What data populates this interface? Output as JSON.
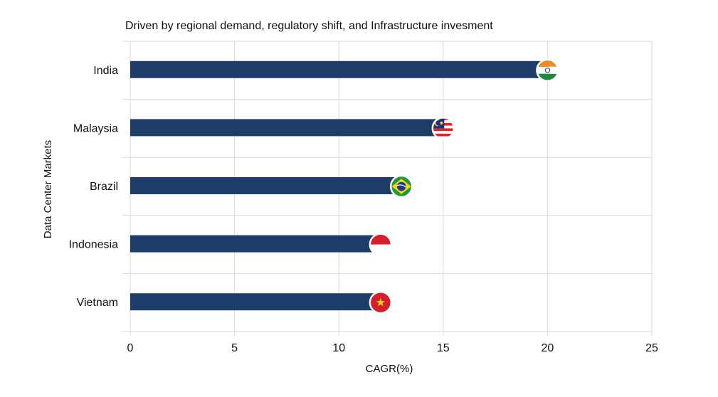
{
  "chart_data": {
    "type": "bar",
    "orientation": "horizontal",
    "title": "Driven by regional demand, regulatory shift, and Infrastructure invesment",
    "xlabel": "CAGR(%)",
    "ylabel": "Data Center  Markets",
    "xlim": [
      0,
      25
    ],
    "xticks": [
      "0",
      "5",
      "10",
      "15",
      "20",
      "25"
    ],
    "grid": true,
    "categories": [
      "India",
      "Malaysia",
      "Brazil",
      "Indonesia",
      "Vietnam"
    ],
    "values": [
      20,
      15,
      13,
      12,
      12
    ],
    "markers": [
      "india-flag-icon",
      "malaysia-flag-icon",
      "brazil-flag-icon",
      "indonesia-flag-icon",
      "vietnam-flag-icon"
    ],
    "bar_color": "#1d3d68"
  }
}
